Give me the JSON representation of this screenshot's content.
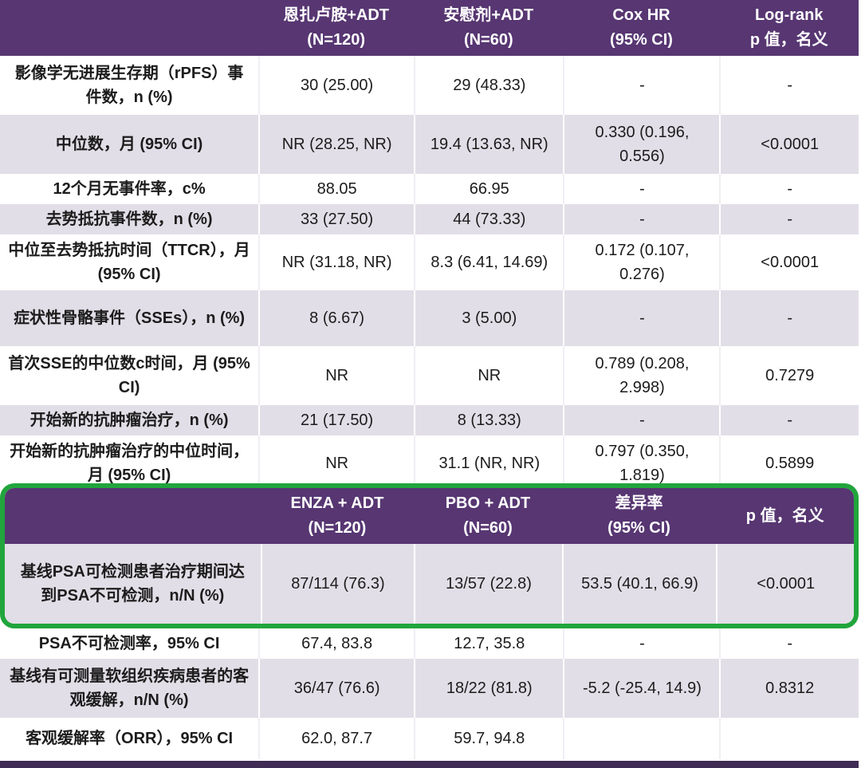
{
  "colors": {
    "header_purple": "#573672",
    "row_lavender": "#e2dee7",
    "highlight_green": "#21a53c",
    "bottom_bar_purple": "#3f2b54"
  },
  "table": {
    "header1": {
      "cols": [
        {
          "line1": "恩扎卢胺+ADT",
          "line2": "(N=120)"
        },
        {
          "line1": "安慰剂+ADT",
          "line2": "(N=60)"
        },
        {
          "line1": "Cox HR",
          "line2": "(95% CI)"
        },
        {
          "line1": "Log-rank",
          "line2": "p 值，名义"
        }
      ]
    },
    "header2": {
      "cols": [
        {
          "line1": "ENZA + ADT",
          "line2": "(N=120)"
        },
        {
          "line1": "PBO + ADT",
          "line2": "(N=60)"
        },
        {
          "line1": "差异率",
          "line2": "(95% CI)"
        },
        {
          "line1": "p 值，名义",
          "line2": ""
        }
      ]
    },
    "rows": [
      {
        "label": "影像学无进展生存期（rPFS）事件数，n (%)",
        "c1": "30 (25.00)",
        "c2": "29 (48.33)",
        "c3": "-",
        "c4": "-"
      },
      {
        "label": "中位数，月 (95% CI)",
        "c1": "NR (28.25, NR)",
        "c2": "19.4 (13.63, NR)",
        "c3": "0.330 (0.196, 0.556)",
        "c4": "<0.0001"
      },
      {
        "label": "12个月无事件率，c%",
        "c1": "88.05",
        "c2": "66.95",
        "c3": "-",
        "c4": "-"
      },
      {
        "label": "去势抵抗事件数，n (%)",
        "c1": "33 (27.50)",
        "c2": "44 (73.33)",
        "c3": "-",
        "c4": "-"
      },
      {
        "label": "中位至去势抵抗时间（TTCR），月 (95% CI)",
        "c1": "NR (31.18, NR)",
        "c2": "8.3 (6.41, 14.69)",
        "c3": "0.172 (0.107, 0.276)",
        "c4": "<0.0001"
      },
      {
        "label": "症状性骨骼事件（SSEs），n (%)",
        "c1": "8 (6.67)",
        "c2": "3 (5.00)",
        "c3": "-",
        "c4": "-"
      },
      {
        "label": "首次SSE的中位数c时间，月 (95% CI)",
        "c1": "NR",
        "c2": "NR",
        "c3": "0.789 (0.208, 2.998)",
        "c4": "0.7279"
      },
      {
        "label": "开始新的抗肿瘤治疗，n (%)",
        "c1": "21 (17.50)",
        "c2": "8 (13.33)",
        "c3": "-",
        "c4": "-"
      },
      {
        "label": "开始新的抗肿瘤治疗的中位时间，月 (95% CI)",
        "c1": "NR",
        "c2": "31.1 (NR, NR)",
        "c3": "0.797 (0.350, 1.819)",
        "c4": "0.5899"
      },
      {
        "label": "基线PSA可检测患者治疗期间达到PSA不可检测，n/N (%)",
        "c1": "87/114 (76.3)",
        "c2": "13/57 (22.8)",
        "c3": "53.5 (40.1, 66.9)",
        "c4": "<0.0001"
      },
      {
        "label": "PSA不可检测率，95% CI",
        "c1": "67.4, 83.8",
        "c2": "12.7, 35.8",
        "c3": "-",
        "c4": "-"
      },
      {
        "label": "基线有可测量软组织疾病患者的客观缓解，n/N (%)",
        "c1": "36/47 (76.6)",
        "c2": "18/22 (81.8)",
        "c3": "-5.2 (-25.4, 14.9)",
        "c4": "0.8312"
      },
      {
        "label": "客观缓解率（ORR），95% CI",
        "c1": "62.0, 87.7",
        "c2": "59.7, 94.8",
        "c3": "",
        "c4": ""
      }
    ]
  }
}
